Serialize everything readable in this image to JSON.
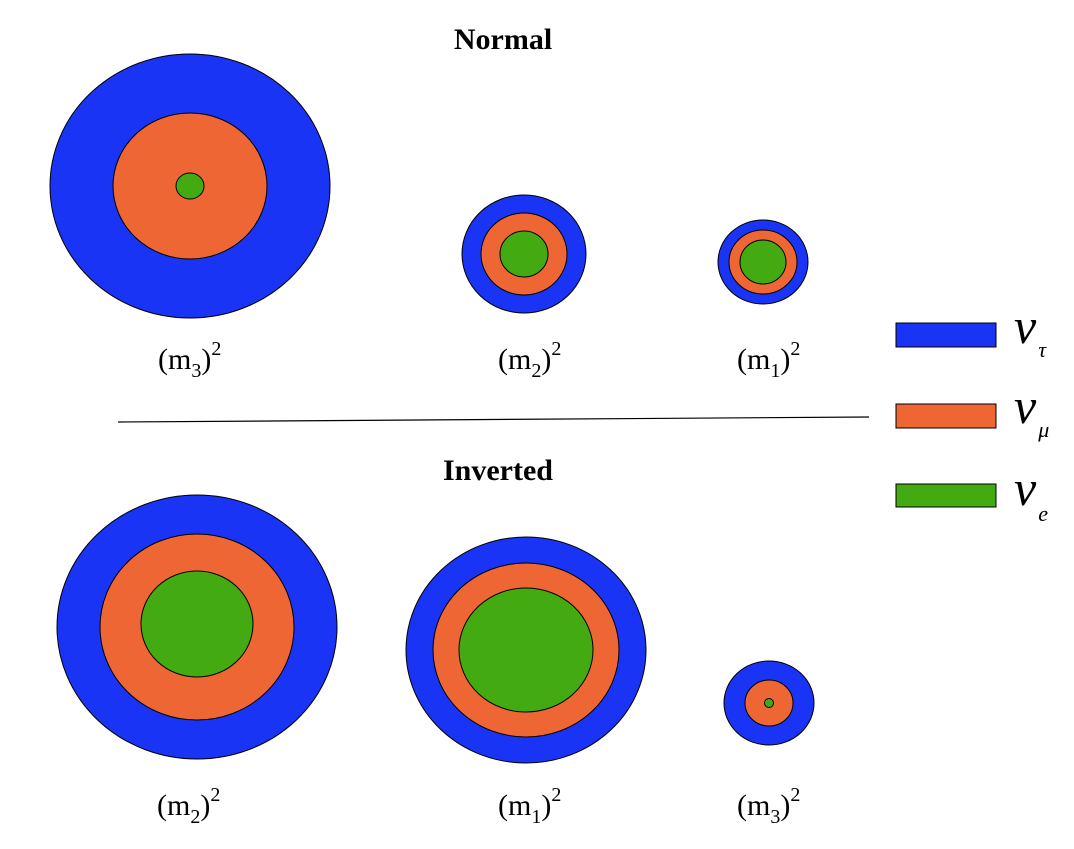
{
  "title_normal": "Normal",
  "title_inverted": "Inverted",
  "colors": {
    "tau": "#1a34f5",
    "mu": "#ee6633",
    "e": "#44aa11",
    "outline": "#000000",
    "divider": "#000000"
  },
  "legend": [
    {
      "symbol": "ν",
      "sub": "τ",
      "flavor": "tau",
      "icon": "tau-swatch"
    },
    {
      "symbol": "ν",
      "sub": "μ",
      "flavor": "mu",
      "icon": "mu-swatch"
    },
    {
      "symbol": "ν",
      "sub": "e",
      "flavor": "e",
      "icon": "e-swatch"
    }
  ],
  "normal": [
    {
      "open": "(m",
      "sub": "3",
      "close": ")",
      "sup": "2"
    },
    {
      "open": "(m",
      "sub": "2",
      "close": ")",
      "sup": "2"
    },
    {
      "open": "(m",
      "sub": "1",
      "close": ")",
      "sup": "2"
    }
  ],
  "inverted": [
    {
      "open": "(m",
      "sub": "2",
      "close": ")",
      "sup": "2"
    },
    {
      "open": "(m",
      "sub": "1",
      "close": ")",
      "sup": "2"
    },
    {
      "open": "(m",
      "sub": "3",
      "close": ")",
      "sup": "2"
    }
  ]
}
